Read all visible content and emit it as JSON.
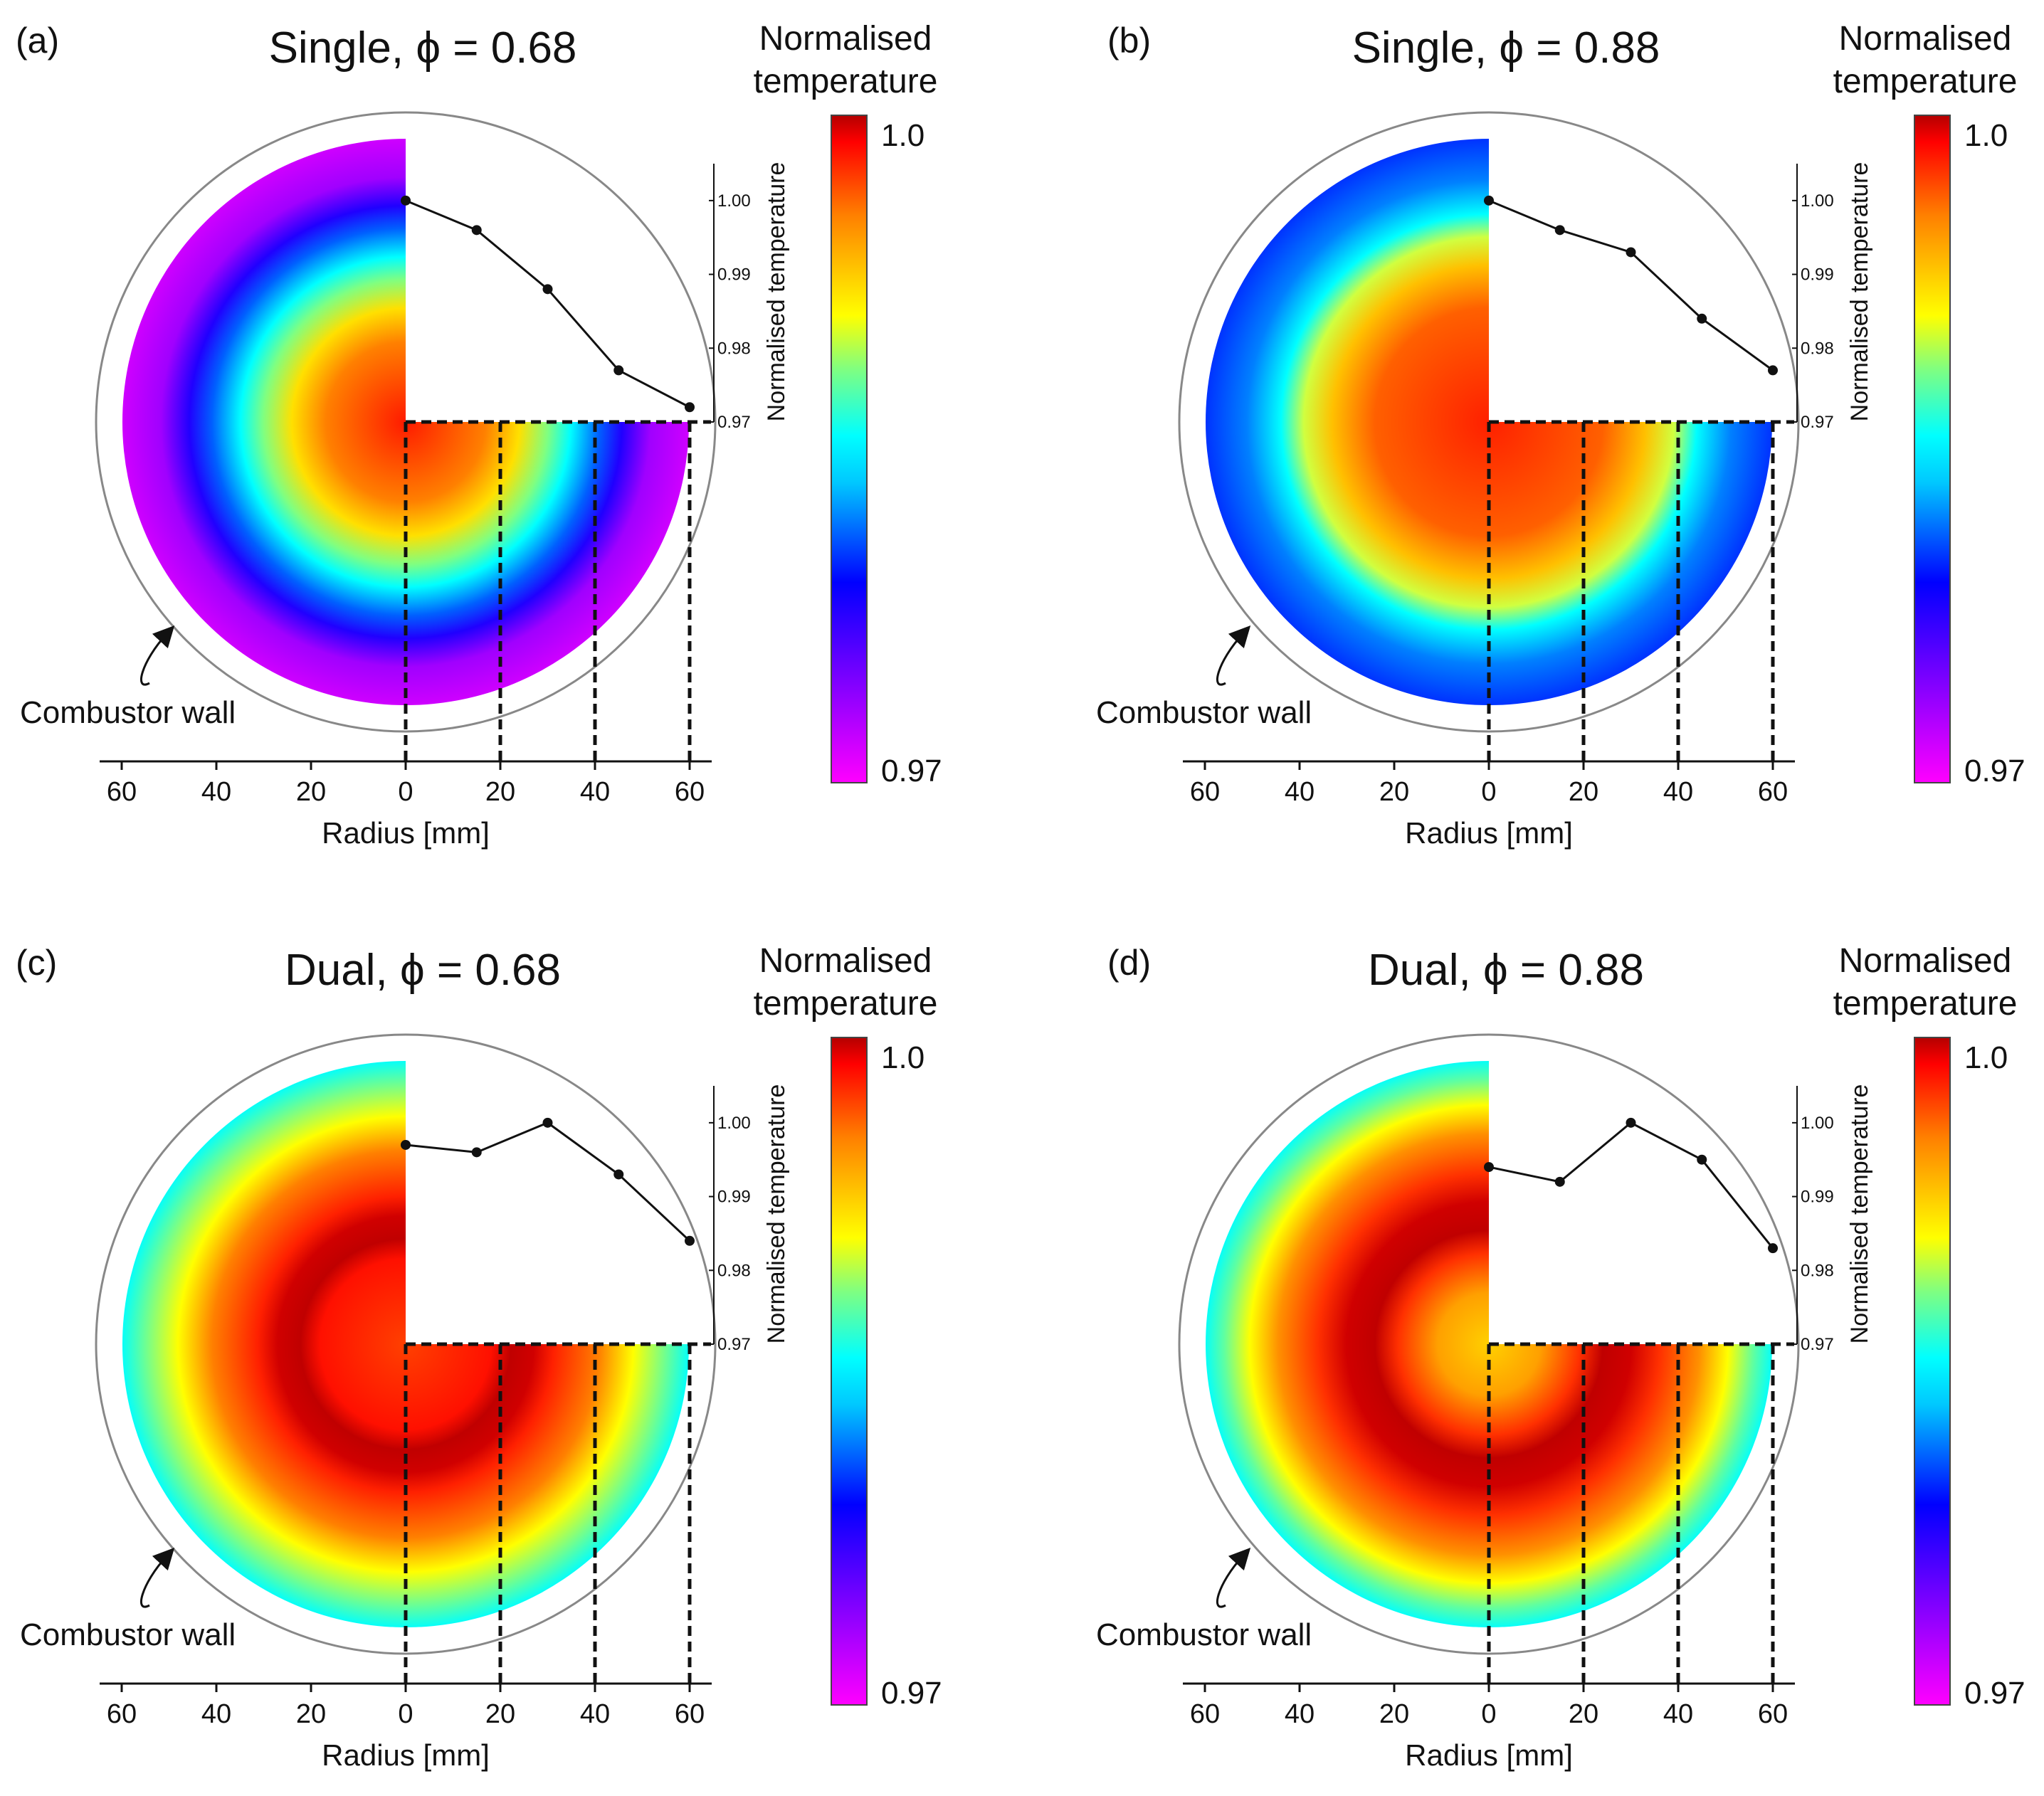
{
  "chart_data": [
    {
      "type": "line",
      "panel": "(a)",
      "title": "Single, ϕ = 0.68",
      "xlabel": "Radius [mm]",
      "ylabel": "Normalised temperature",
      "x_ticks": [
        "60",
        "40",
        "20",
        "0",
        "20",
        "40",
        "60"
      ],
      "y_ticks": [
        "0.97",
        "0.98",
        "0.99",
        "1.00"
      ],
      "ylim": [
        0.97,
        1.005
      ],
      "x": [
        0,
        15,
        30,
        45,
        60
      ],
      "values": [
        1.0,
        0.996,
        0.988,
        0.977,
        0.972
      ],
      "wall_label": "Combustor wall",
      "colorbar": {
        "title_line1": "Normalised",
        "title_line2": "temperature",
        "max_label": "1.0",
        "min_label": "0.97"
      },
      "field": "decreasing"
    },
    {
      "type": "line",
      "panel": "(b)",
      "title": "Single, ϕ = 0.88",
      "xlabel": "Radius [mm]",
      "ylabel": "Normalised temperature",
      "x_ticks": [
        "60",
        "40",
        "20",
        "0",
        "20",
        "40",
        "60"
      ],
      "y_ticks": [
        "0.97",
        "0.98",
        "0.99",
        "1.00"
      ],
      "ylim": [
        0.97,
        1.005
      ],
      "x": [
        0,
        15,
        30,
        45,
        60
      ],
      "values": [
        1.0,
        0.996,
        0.993,
        0.984,
        0.977
      ],
      "wall_label": "Combustor wall",
      "colorbar": {
        "title_line1": "Normalised",
        "title_line2": "temperature",
        "max_label": "1.0",
        "min_label": "0.97"
      },
      "field": "decreasing-hot"
    },
    {
      "type": "line",
      "panel": "(c)",
      "title": "Dual, ϕ = 0.68",
      "xlabel": "Radius [mm]",
      "ylabel": "Normalised temperature",
      "x_ticks": [
        "60",
        "40",
        "20",
        "0",
        "20",
        "40",
        "60"
      ],
      "y_ticks": [
        "0.97",
        "0.98",
        "0.99",
        "1.00"
      ],
      "ylim": [
        0.97,
        1.005
      ],
      "x": [
        0,
        15,
        30,
        45,
        60
      ],
      "values": [
        0.997,
        0.996,
        1.0,
        0.993,
        0.984
      ],
      "wall_label": "Combustor wall",
      "colorbar": {
        "title_line1": "Normalised",
        "title_line2": "temperature",
        "max_label": "1.0",
        "min_label": "0.97"
      },
      "field": "ring-c"
    },
    {
      "type": "line",
      "panel": "(d)",
      "title": "Dual, ϕ = 0.88",
      "xlabel": "Radius [mm]",
      "ylabel": "Normalised temperature",
      "x_ticks": [
        "60",
        "40",
        "20",
        "0",
        "20",
        "40",
        "60"
      ],
      "y_ticks": [
        "0.97",
        "0.98",
        "0.99",
        "1.00"
      ],
      "ylim": [
        0.97,
        1.005
      ],
      "x": [
        0,
        15,
        30,
        45,
        60
      ],
      "values": [
        0.994,
        0.992,
        1.0,
        0.995,
        0.983
      ],
      "wall_label": "Combustor wall",
      "colorbar": {
        "title_line1": "Normalised",
        "title_line2": "temperature",
        "max_label": "1.0",
        "min_label": "0.97"
      },
      "field": "ring-d"
    }
  ]
}
